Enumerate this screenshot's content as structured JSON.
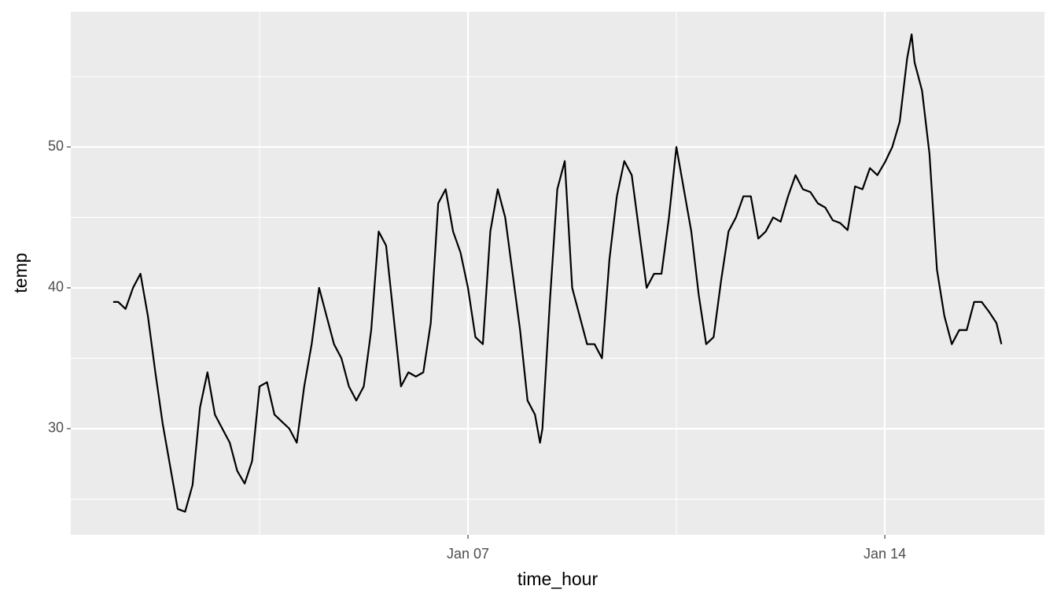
{
  "chart_data": {
    "type": "line",
    "x_label": "time_hour",
    "y_label": "temp",
    "xlim": [
      0.33,
      16.68
    ],
    "ylim": [
      22.46,
      59.6
    ],
    "xticks": [
      {
        "value": 7,
        "label": "Jan 07"
      },
      {
        "value": 14,
        "label": "Jan 14"
      }
    ],
    "yticks": [
      30,
      40,
      50
    ],
    "grid": true,
    "color": "#000000",
    "x": [
      1.042,
      1.125,
      1.25,
      1.375,
      1.5,
      1.625,
      1.75,
      1.875,
      2.0,
      2.125,
      2.25,
      2.375,
      2.5,
      2.625,
      2.75,
      2.875,
      3.0,
      3.125,
      3.25,
      3.375,
      3.5,
      3.625,
      3.75,
      3.875,
      4.0,
      4.125,
      4.25,
      4.375,
      4.5,
      4.625,
      4.75,
      4.875,
      5.0,
      5.125,
      5.25,
      5.375,
      5.5,
      5.625,
      5.75,
      5.875,
      6.0,
      6.125,
      6.25,
      6.375,
      6.5,
      6.625,
      6.75,
      6.875,
      7.0,
      7.125,
      7.25,
      7.375,
      7.5,
      7.625,
      7.75,
      7.875,
      8.0,
      8.125,
      8.21,
      8.25,
      8.375,
      8.5,
      8.625,
      8.75,
      8.875,
      9.0,
      9.125,
      9.25,
      9.375,
      9.5,
      9.625,
      9.75,
      9.875,
      10.0,
      10.125,
      10.25,
      10.375,
      10.5,
      10.625,
      10.75,
      10.875,
      11.0,
      11.125,
      11.25,
      11.375,
      11.5,
      11.625,
      11.75,
      11.875,
      12.0,
      12.125,
      12.25,
      12.375,
      12.5,
      12.625,
      12.75,
      12.875,
      13.0,
      13.125,
      13.25,
      13.375,
      13.5,
      13.625,
      13.75,
      13.875,
      14.0,
      14.125,
      14.25,
      14.375,
      14.45,
      14.5,
      14.625,
      14.75,
      14.875,
      15.0,
      15.125,
      15.25,
      15.375,
      15.5,
      15.625,
      15.75,
      15.875,
      15.958
    ],
    "values": [
      39,
      39,
      38.5,
      40,
      41,
      38,
      34,
      30.3,
      27.3,
      24.3,
      24.1,
      26,
      31.5,
      34,
      31,
      30,
      29,
      27,
      26.1,
      27.7,
      33,
      33.3,
      31,
      30.5,
      30,
      29,
      33,
      36,
      40,
      38,
      36,
      35,
      33,
      32,
      33,
      37,
      44,
      43,
      38,
      33,
      34,
      33.7,
      34,
      37.5,
      46,
      47,
      44,
      42.5,
      40,
      36.5,
      36,
      44,
      47,
      45,
      41,
      37,
      32,
      31,
      29,
      30,
      39,
      47,
      49,
      40,
      38,
      36,
      36,
      35,
      42,
      46.5,
      49,
      48,
      44,
      40,
      41,
      41,
      45,
      50,
      47,
      44,
      39.5,
      36,
      36.5,
      40.5,
      44,
      45,
      46.5,
      46.5,
      43.5,
      44,
      45,
      44.7,
      46.5,
      48,
      47,
      46.8,
      46,
      45.7,
      44.8,
      44.6,
      44.1,
      47.2,
      47,
      48.5,
      48,
      48.9,
      50,
      51.8,
      56.3,
      58,
      56,
      54,
      49.5,
      41.3,
      38,
      36,
      37,
      37,
      39,
      39,
      38.3,
      37.5,
      36
    ]
  }
}
